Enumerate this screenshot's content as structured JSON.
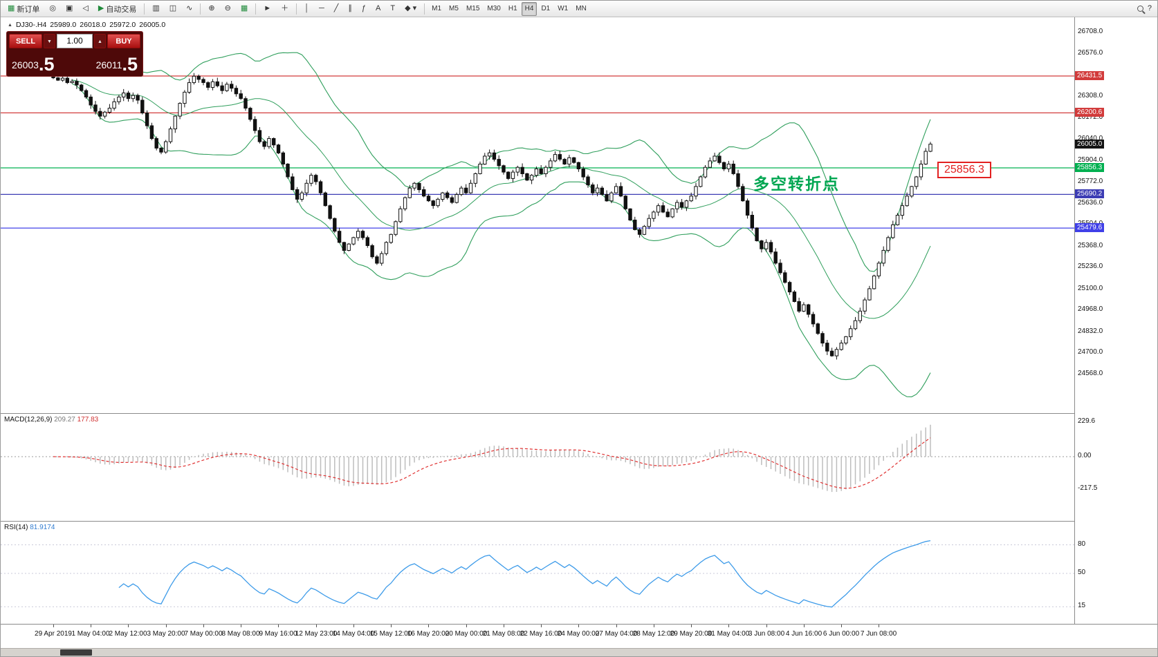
{
  "toolbar": {
    "new_order": "新订单",
    "autotrading": "自动交易",
    "timeframes": [
      "M1",
      "M5",
      "M15",
      "M30",
      "H1",
      "H4",
      "D1",
      "W1",
      "MN"
    ],
    "active_timeframe": "H4"
  },
  "symbol_info": {
    "title": "DJ30-.H4",
    "open": "25989.0",
    "high": "26018.0",
    "low": "25972.0",
    "close": "26005.0"
  },
  "trade_panel": {
    "sell_label": "SELL",
    "buy_label": "BUY",
    "volume": "1.00",
    "sell_price": "26003",
    "sell_frac": ".5",
    "buy_price": "26011",
    "buy_frac": ".5"
  },
  "annotation": {
    "text": "多空转折点",
    "color": "#00a651"
  },
  "callout": {
    "text": "25856.3"
  },
  "current_price": {
    "label": "26005.0",
    "color": "#141414"
  },
  "hlines": [
    {
      "price": 26431.5,
      "label": "26431.5",
      "color": "#d23b3b"
    },
    {
      "price": 26200.6,
      "label": "26200.6",
      "color": "#d23b3b"
    },
    {
      "price": 25856.3,
      "label": "25856.3",
      "color": "#00b050"
    },
    {
      "price": 25690.2,
      "label": "25690.2",
      "color": "#3c3cb4"
    },
    {
      "price": 25479.6,
      "label": "25479.6",
      "color": "#4040e8"
    }
  ],
  "macd": {
    "label": "MACD(12,26,9)",
    "main_value": "209.27",
    "signal_value": "177.83",
    "axis": [
      {
        "v": 229.6,
        "label": "229.6"
      },
      {
        "v": 0,
        "label": "0.00"
      },
      {
        "v": -217.5,
        "label": "-217.5"
      }
    ]
  },
  "rsi": {
    "label": "RSI(14)",
    "value": "81.9174",
    "levels": [
      {
        "v": 80,
        "label": "80"
      },
      {
        "v": 50,
        "label": "50"
      },
      {
        "v": 15,
        "label": "15"
      }
    ]
  },
  "chart_data": {
    "type": "candlestick",
    "symbol": "DJ30-",
    "timeframe": "H4",
    "title": "DJ30-.H4 25989.0 26018.0 25972.0 26005.0",
    "price_axis_ticks": [
      26708,
      26576,
      26440,
      26308,
      26172,
      26040,
      25904,
      25772,
      25636,
      25504,
      25368,
      25236,
      25100,
      24968,
      24832,
      24700,
      24568
    ],
    "time_axis_labels": [
      "29 Apr 2019",
      "1 May 04:00",
      "2 May 12:00",
      "3 May 20:00",
      "7 May 00:00",
      "8 May 08:00",
      "9 May 16:00",
      "12 May 23:00",
      "14 May 04:00",
      "15 May 12:00",
      "16 May 20:00",
      "20 May 00:00",
      "21 May 08:00",
      "22 May 16:00",
      "24 May 00:00",
      "27 May 04:00",
      "28 May 12:00",
      "29 May 20:00",
      "31 May 04:00",
      "3 Jun 08:00",
      "4 Jun 16:00",
      "6 Jun 00:00",
      "7 Jun 08:00"
    ],
    "closes": [
      26420,
      26405,
      26418,
      26390,
      26398,
      26375,
      26340,
      26300,
      26250,
      26210,
      26180,
      26205,
      26230,
      26270,
      26300,
      26325,
      26290,
      26310,
      26280,
      26200,
      26120,
      26040,
      25980,
      25955,
      26020,
      26100,
      26180,
      26260,
      26330,
      26390,
      26430,
      26410,
      26390,
      26360,
      26395,
      26370,
      26340,
      26380,
      26355,
      26320,
      26290,
      26230,
      26160,
      26090,
      26020,
      25990,
      26040,
      26000,
      25950,
      25880,
      25800,
      25720,
      25660,
      25700,
      25760,
      25810,
      25770,
      25700,
      25620,
      25540,
      25460,
      25390,
      25340,
      25380,
      25420,
      25460,
      25420,
      25370,
      25300,
      25260,
      25320,
      25390,
      25440,
      25520,
      25600,
      25670,
      25730,
      25760,
      25720,
      25680,
      25650,
      25620,
      25660,
      25700,
      25670,
      25640,
      25690,
      25730,
      25700,
      25760,
      25820,
      25880,
      25930,
      25950,
      25910,
      25870,
      25830,
      25790,
      25830,
      25860,
      25820,
      25780,
      25810,
      25850,
      25820,
      25860,
      25900,
      25940,
      25910,
      25880,
      25920,
      25890,
      25850,
      25800,
      25750,
      25700,
      25730,
      25690,
      25650,
      25700,
      25740,
      25680,
      25600,
      25530,
      25470,
      25440,
      25490,
      25540,
      25580,
      25620,
      25580,
      25550,
      25600,
      25640,
      25610,
      25650,
      25680,
      25740,
      25800,
      25860,
      25900,
      25930,
      25890,
      25850,
      25880,
      25820,
      25740,
      25650,
      25560,
      25480,
      25400,
      25350,
      25390,
      25330,
      25260,
      25200,
      25140,
      25080,
      25020,
      24960,
      25000,
      24940,
      24880,
      24820,
      24760,
      24710,
      24680,
      24720,
      24760,
      24800,
      24850,
      24900,
      24960,
      25030,
      25100,
      25180,
      25260,
      25340,
      25420,
      25500,
      25560,
      25620,
      25680,
      25740,
      25800,
      25880,
      25960,
      26005
    ],
    "indicators": [
      "Bollinger Bands(20,2)",
      "MACD(12,26,9)",
      "RSI(14)"
    ]
  }
}
